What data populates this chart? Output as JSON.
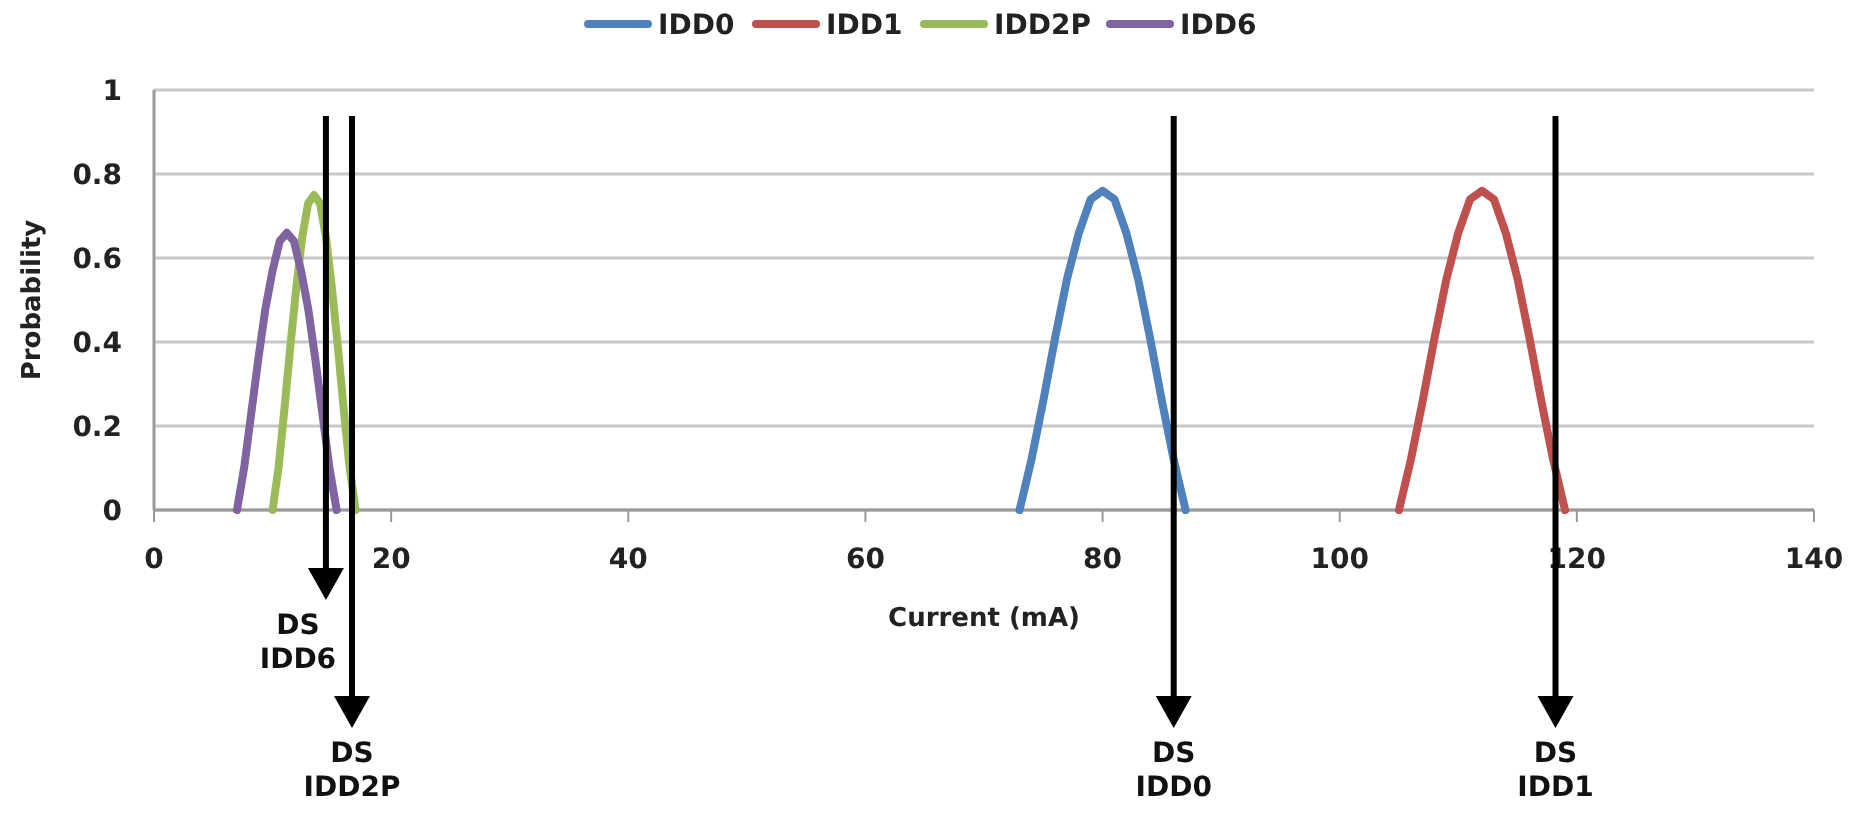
{
  "chart_data": {
    "type": "line",
    "xlabel": "Current (mA)",
    "ylabel": "Probability",
    "xlim": [
      0,
      140
    ],
    "xticks": [
      0,
      20,
      40,
      60,
      80,
      100,
      120,
      140
    ],
    "ylim": [
      0,
      1
    ],
    "yticks": [
      0,
      0.2,
      0.4,
      0.6,
      0.8,
      1
    ],
    "grid": "y",
    "legend": "top",
    "marker": "none",
    "line_style": "solid",
    "series": [
      {
        "name": "IDD0",
        "color": "#4f81bd",
        "x": [
          73,
          74,
          75,
          76,
          77,
          78,
          79,
          80,
          81,
          82,
          83,
          84,
          85,
          86,
          87
        ],
        "values": [
          0,
          0.12,
          0.26,
          0.41,
          0.55,
          0.66,
          0.74,
          0.76,
          0.74,
          0.66,
          0.55,
          0.41,
          0.26,
          0.12,
          0
        ]
      },
      {
        "name": "IDD1",
        "color": "#c0504d",
        "x": [
          105,
          106,
          107,
          108,
          109,
          110,
          111,
          112,
          113,
          114,
          115,
          116,
          117,
          118,
          119
        ],
        "values": [
          0,
          0.12,
          0.26,
          0.41,
          0.55,
          0.66,
          0.74,
          0.76,
          0.74,
          0.66,
          0.55,
          0.41,
          0.26,
          0.12,
          0
        ]
      },
      {
        "name": "IDD2P",
        "color": "#9bbb59",
        "x": [
          10,
          10.5,
          11,
          11.5,
          12,
          12.5,
          13,
          13.5,
          14,
          14.5,
          15,
          15.5,
          16,
          16.5,
          17
        ],
        "values": [
          0,
          0.1,
          0.24,
          0.39,
          0.53,
          0.65,
          0.73,
          0.75,
          0.73,
          0.65,
          0.53,
          0.39,
          0.24,
          0.1,
          0
        ]
      },
      {
        "name": "IDD6",
        "color": "#8064a2",
        "x": [
          7,
          7.6,
          8.2,
          8.8,
          9.4,
          10,
          10.6,
          11.2,
          11.8,
          12.4,
          13,
          13.6,
          14.2,
          14.8,
          15.4
        ],
        "values": [
          0,
          0.1,
          0.23,
          0.36,
          0.48,
          0.57,
          0.64,
          0.66,
          0.64,
          0.57,
          0.48,
          0.36,
          0.23,
          0.1,
          0
        ]
      }
    ],
    "ref_lines": [
      {
        "axis": "x",
        "value": 14.5,
        "label": "DS IDD6",
        "color": "#000000"
      },
      {
        "axis": "x",
        "value": 16.7,
        "label": "DS IDD2P",
        "color": "#000000"
      },
      {
        "axis": "x",
        "value": 86,
        "label": "DS IDD0",
        "color": "#000000"
      },
      {
        "axis": "x",
        "value": 118.2,
        "label": "DS IDD1",
        "color": "#000000"
      }
    ]
  }
}
